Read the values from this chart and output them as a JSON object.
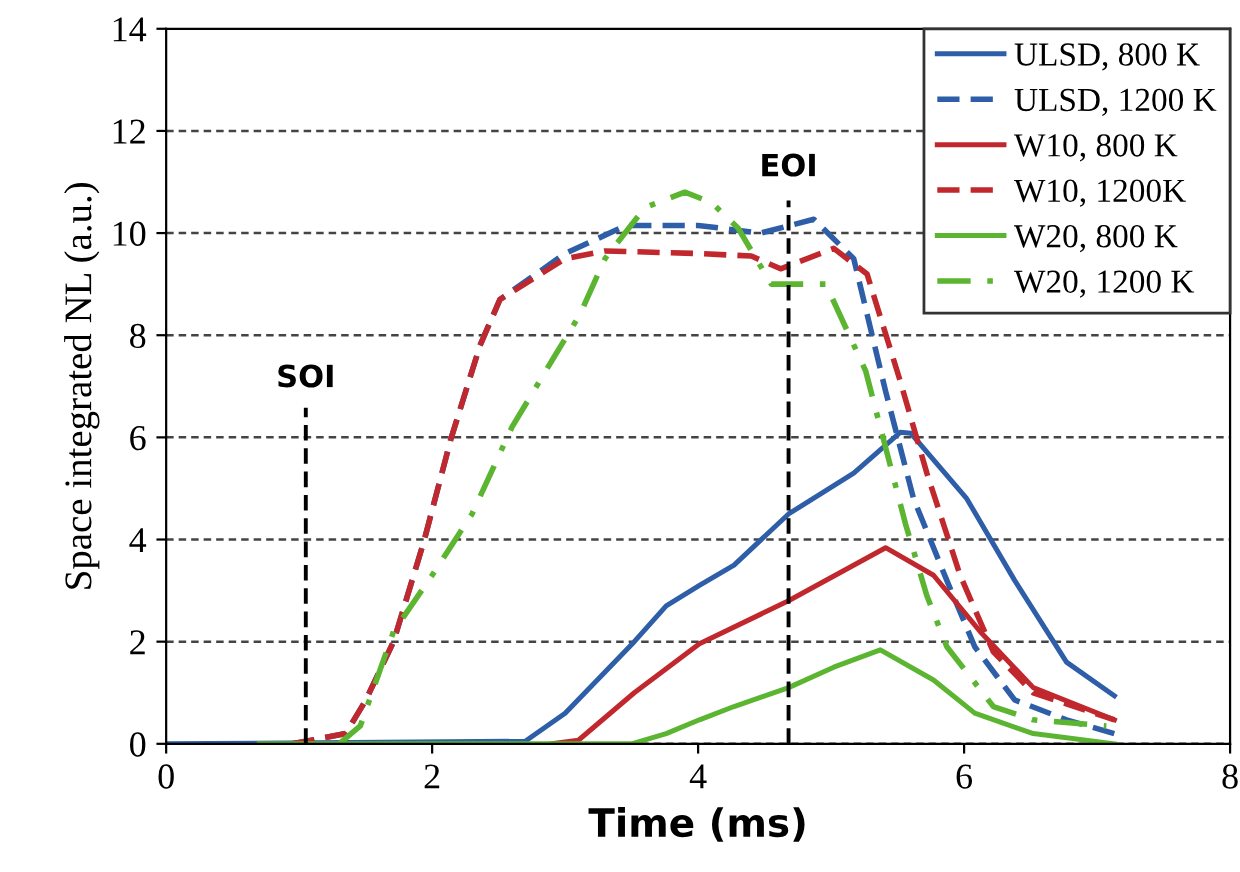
{
  "chart_data": {
    "type": "line",
    "xlabel": "Time (ms)",
    "ylabel": "Space integrated NL (a.u.)",
    "xlim": [
      0,
      8
    ],
    "xticks": [
      0,
      2,
      4,
      6,
      8
    ],
    "ylim": [
      0,
      14
    ],
    "yticks": [
      0,
      2,
      4,
      6,
      8,
      10,
      12,
      14
    ],
    "grid": "y",
    "legend": "top right",
    "marker": "none",
    "ref_lines": [
      {
        "axis": "x",
        "value": 1.05,
        "label": "SOI",
        "line_style": "dashed",
        "color": "#000000"
      },
      {
        "axis": "x",
        "value": 4.68,
        "label": "EOI",
        "line_style": "dashed",
        "color": "#000000"
      }
    ],
    "series": [
      {
        "name": "ULSD, 800 K",
        "color": "#2e5ea8",
        "line_style": "solid",
        "x": [
          0,
          2.7,
          3.0,
          3.52,
          3.76,
          4.01,
          4.27,
          4.68,
          5.17,
          5.52,
          5.6,
          6.02,
          6.38,
          6.77,
          7.13
        ],
        "values": [
          0,
          0.05,
          0.6,
          2.0,
          2.7,
          3.1,
          3.5,
          4.5,
          5.3,
          6.1,
          6.08,
          4.8,
          3.2,
          1.6,
          0.94
        ]
      },
      {
        "name": "ULSD, 1200 K",
        "color": "#2e5ea8",
        "line_style": "dashed",
        "x": [
          0.95,
          1.05,
          1.35,
          1.5,
          1.71,
          1.94,
          2.14,
          2.36,
          2.51,
          3.0,
          3.46,
          4.0,
          4.47,
          4.87,
          5.17,
          5.41,
          5.62,
          5.87,
          6.08,
          6.38,
          6.77,
          7.13
        ],
        "values": [
          0,
          0.05,
          0.2,
          0.85,
          2.0,
          3.98,
          5.96,
          7.8,
          8.7,
          9.6,
          10.15,
          10.15,
          10.0,
          10.27,
          9.5,
          6.9,
          4.8,
          3.2,
          1.9,
          0.86,
          0.47,
          0.2
        ]
      },
      {
        "name": "W10, 800 K",
        "color": "#c0282d",
        "line_style": "solid",
        "x": [
          2.9,
          3.1,
          3.52,
          4.01,
          4.68,
          5.41,
          5.77,
          6.12,
          6.52,
          7.13
        ],
        "values": [
          0,
          0.07,
          1.0,
          1.96,
          2.8,
          3.84,
          3.3,
          2.2,
          1.1,
          0.47
        ]
      },
      {
        "name": "W10, 1200K",
        "color": "#c0282d",
        "line_style": "dashed",
        "x": [
          0.95,
          1.05,
          1.35,
          1.5,
          1.71,
          1.94,
          2.14,
          2.36,
          2.51,
          3.0,
          3.3,
          4.0,
          4.4,
          4.62,
          5.02,
          5.27,
          5.52,
          5.72,
          5.97,
          6.22,
          6.52,
          7.13
        ],
        "values": [
          0,
          0.05,
          0.2,
          0.85,
          2.0,
          3.98,
          5.96,
          7.8,
          8.7,
          9.5,
          9.65,
          9.6,
          9.55,
          9.3,
          9.7,
          9.2,
          7.1,
          5.3,
          3.3,
          1.8,
          1.0,
          0.47
        ]
      },
      {
        "name": "W20, 800 K",
        "color": "#5cb531",
        "line_style": "solid",
        "x": [
          0.7,
          3.5,
          3.76,
          4.01,
          4.27,
          4.68,
          5.02,
          5.37,
          5.77,
          6.08,
          6.52,
          7.13
        ],
        "values": [
          0,
          0,
          0.2,
          0.47,
          0.73,
          1.1,
          1.5,
          1.84,
          1.25,
          0.6,
          0.2,
          0
        ]
      },
      {
        "name": "W20, 1200 K",
        "color": "#5cb531",
        "line_style": "dashdot",
        "x": [
          1.3,
          1.46,
          1.71,
          2.0,
          2.3,
          2.6,
          2.9,
          3.11,
          3.3,
          3.6,
          3.9,
          4.1,
          4.3,
          4.55,
          4.96,
          5.26,
          5.41,
          5.56,
          5.72,
          5.87,
          6.22,
          6.52,
          7.07
        ],
        "values": [
          0,
          0.35,
          2.2,
          3.3,
          4.5,
          6.2,
          7.5,
          8.4,
          9.5,
          10.5,
          10.8,
          10.6,
          10.1,
          9.0,
          9.0,
          7.3,
          5.8,
          4.3,
          2.9,
          1.9,
          0.73,
          0.47,
          0.35
        ]
      }
    ]
  }
}
